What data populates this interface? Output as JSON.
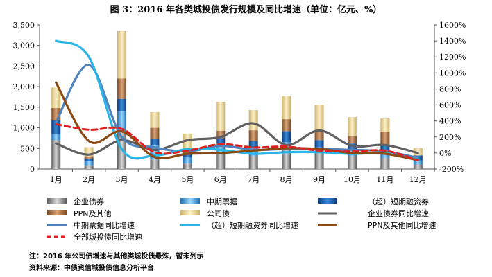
{
  "title": "图 3：2016 年各类城投债发行规模及同比增速（单位：亿元、%）",
  "note": "注：2016 年公司债增速与其他类城投债悬殊，暂未列示",
  "source": "资料来源：中债资信城投债信息分析平台",
  "chart_data": {
    "type": "bar",
    "stacked": true,
    "categories": [
      "1月",
      "2月",
      "3月",
      "4月",
      "5月",
      "6月",
      "7月",
      "8月",
      "9月",
      "10月",
      "11月",
      "12月"
    ],
    "y_left": {
      "ticks": [
        "0",
        "500",
        "1,000",
        "1,500",
        "2,000",
        "2,500",
        "3,000",
        "3,500"
      ],
      "ylim": [
        0,
        3500
      ]
    },
    "y_right": {
      "ticks": [
        "-200%",
        "0%",
        "200%",
        "400%",
        "600%",
        "800%",
        "1000%",
        "1200%",
        "1400%",
        "1600%"
      ],
      "ylim": [
        -200,
        1600
      ]
    },
    "bar_series": [
      {
        "name": "企业债券",
        "color": "#8c8c8c",
        "values": [
          700,
          90,
          900,
          230,
          130,
          420,
          320,
          450,
          380,
          320,
          270,
          110
        ]
      },
      {
        "name": "中期票据",
        "color": "#5ab0e6",
        "values": [
          150,
          100,
          500,
          350,
          150,
          200,
          180,
          200,
          150,
          150,
          180,
          100
        ]
      },
      {
        "name": "（超）短期融资券",
        "color": "#1f5fa8",
        "values": [
          330,
          60,
          300,
          160,
          80,
          130,
          180,
          270,
          170,
          150,
          150,
          120
        ]
      },
      {
        "name": "PPN及其他",
        "color": "#a8744a",
        "values": [
          300,
          60,
          500,
          260,
          140,
          180,
          260,
          290,
          240,
          180,
          310,
          0
        ]
      },
      {
        "name": "公司债",
        "color": "#e8d49a",
        "values": [
          500,
          220,
          1150,
          380,
          360,
          700,
          490,
          560,
          620,
          460,
          320,
          180
        ]
      }
    ],
    "line_series": [
      {
        "name": "企业债券同比增速",
        "color": "#606060",
        "dash": false,
        "values": [
          120,
          -20,
          160,
          40,
          160,
          200,
          370,
          100,
          280,
          90,
          100,
          0
        ]
      },
      {
        "name": "中期票据同比增速",
        "color": "#4f81bd",
        "dash": false,
        "values": [
          380,
          1100,
          200,
          70,
          20,
          90,
          40,
          50,
          50,
          40,
          20,
          -60
        ]
      },
      {
        "name": "（超）短期融资券同比增速",
        "color": "#2ab5e6",
        "dash": false,
        "values": [
          1400,
          1200,
          50,
          -30,
          50,
          40,
          -10,
          10,
          10,
          -10,
          0,
          -80
        ]
      },
      {
        "name": "PPN及其他同比增速",
        "color": "#8b4a14",
        "dash": false,
        "values": [
          880,
          150,
          270,
          -50,
          -10,
          0,
          30,
          60,
          50,
          0,
          -10,
          -90
        ]
      },
      {
        "name": "全部城投债同比增速",
        "color": "#e02020",
        "dash": true,
        "values": [
          360,
          290,
          300,
          10,
          30,
          110,
          70,
          80,
          30,
          20,
          30,
          -90
        ]
      }
    ],
    "legend_rows": [
      [
        "企业债券",
        "中期票据",
        "（超）短期融资券"
      ],
      [
        "PPN及其他",
        "公司债",
        "企业债券同比增速"
      ],
      [
        "中期票据同比增速",
        "（超）短期融资券同比增速",
        "PPN及其他同比增速"
      ],
      [
        "全部城投债同比增速"
      ]
    ],
    "legend_placement": "bottom",
    "grid": false
  }
}
